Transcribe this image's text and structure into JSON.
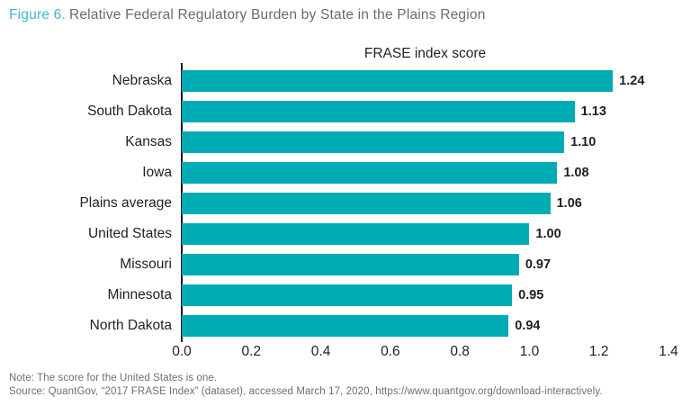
{
  "figure": {
    "label": "Figure 6.",
    "title": "Relative Federal Regulatory Burden by State in the Plains Region"
  },
  "chart_data": {
    "type": "bar",
    "orientation": "horizontal",
    "title": "FRASE index score",
    "categories": [
      "Nebraska",
      "South Dakota",
      "Kansas",
      "Iowa",
      "Plains average",
      "United States",
      "Missouri",
      "Minnesota",
      "North Dakota"
    ],
    "values": [
      1.24,
      1.13,
      1.1,
      1.08,
      1.06,
      1.0,
      0.97,
      0.95,
      0.94
    ],
    "value_labels": [
      "1.24",
      "1.13",
      "1.10",
      "1.08",
      "1.06",
      "1.00",
      "0.97",
      "0.95",
      "0.94"
    ],
    "xlim": [
      0,
      1.4
    ],
    "x_ticks": [
      "0.0",
      "0.2",
      "0.4",
      "0.6",
      "0.8",
      "1.0",
      "1.2",
      "1.4"
    ],
    "grid": false,
    "legend": false,
    "bar_color": "#00acb4",
    "axis_color": "#1a1718",
    "text_color": "#231f20"
  },
  "note": "Note: The score for the United States is one.",
  "source": "Source: QuantGov, “2017 FRASE Index” (dataset), accessed March 17, 2020, https://www.quantgov.org/download-interactively.",
  "colors": {
    "figure_label": "#3fb8c8",
    "figure_title": "#6a6b6e",
    "footnote_gray": "#6d6e71"
  }
}
